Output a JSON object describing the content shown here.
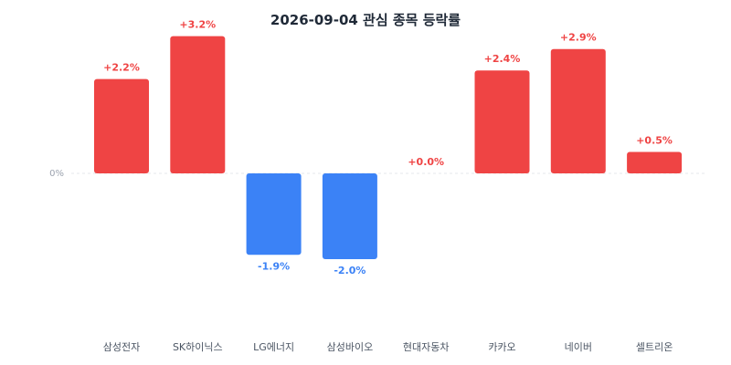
{
  "chart_data": {
    "type": "bar",
    "title": "2026-09-04 관심 종목 등락률",
    "categories": [
      "삼성전자",
      "SK하이닉스",
      "LG에너지",
      "삼성바이오",
      "현대자동차",
      "카카오",
      "네이버",
      "셀트리온"
    ],
    "values": [
      2.2,
      3.2,
      -1.9,
      -2.0,
      0.0,
      2.4,
      2.9,
      0.5
    ],
    "value_labels": [
      "+2.2%",
      "+3.2%",
      "-1.9%",
      "-2.0%",
      "+0.0%",
      "+2.4%",
      "+2.9%",
      "+0.5%"
    ],
    "zero_label": "0%",
    "xlabel": "",
    "ylabel": "",
    "grid": false,
    "colors": {
      "positive": "#ef4444",
      "negative": "#3b82f6",
      "baseline": "#e5e7eb"
    }
  }
}
